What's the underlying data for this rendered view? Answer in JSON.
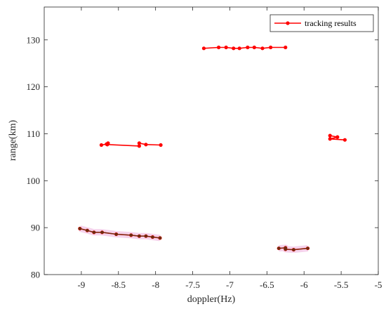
{
  "chart_data": {
    "type": "line",
    "xlabel": "doppler(Hz)",
    "ylabel": "range(km)",
    "xlim": [
      -9.5,
      -5
    ],
    "ylim": [
      80,
      137
    ],
    "xticks": [
      -9,
      -8.5,
      -8,
      -7.5,
      -7,
      -6.5,
      -6,
      -5.5,
      -5
    ],
    "xtick_labels": [
      "-9",
      "-8.5",
      "-8",
      "-7.5",
      "-7",
      "-6.5",
      "-6",
      "-5.5",
      "-5"
    ],
    "yticks": [
      80,
      90,
      100,
      110,
      120,
      130
    ],
    "ytick_labels": [
      "80",
      "90",
      "100",
      "110",
      "120",
      "130"
    ],
    "grid": false,
    "legend": {
      "position": "top-right",
      "entries": [
        "tracking results"
      ]
    },
    "colors": {
      "track": "#ff0000",
      "truth": "#6b2c10",
      "truth_band": "#f2c4e6"
    },
    "series": [
      {
        "name": "tracking results",
        "segments": [
          {
            "points": [
              [
                -7.35,
                128.2
              ],
              [
                -7.15,
                128.4
              ],
              [
                -7.05,
                128.4
              ],
              [
                -6.95,
                128.2
              ],
              [
                -6.87,
                128.2
              ],
              [
                -6.76,
                128.4
              ],
              [
                -6.67,
                128.4
              ],
              [
                -6.56,
                128.2
              ],
              [
                -6.45,
                128.4
              ],
              [
                -6.25,
                128.4
              ]
            ]
          },
          {
            "points": [
              [
                -8.73,
                107.6
              ],
              [
                -8.66,
                107.8
              ],
              [
                -8.64,
                108.0
              ],
              [
                -8.65,
                107.7
              ],
              [
                -8.22,
                107.4
              ],
              [
                -8.22,
                108.0
              ],
              [
                -8.13,
                107.7
              ],
              [
                -7.93,
                107.6
              ]
            ]
          },
          {
            "points": [
              [
                -5.65,
                109.6
              ],
              [
                -5.55,
                109.3
              ],
              [
                -5.65,
                108.9
              ],
              [
                -5.45,
                108.7
              ]
            ]
          },
          {
            "points": [
              [
                -9.02,
                89.8
              ],
              [
                -8.92,
                89.4
              ],
              [
                -8.83,
                89.0
              ],
              [
                -8.72,
                89.0
              ],
              [
                -8.53,
                88.6
              ],
              [
                -8.33,
                88.4
              ],
              [
                -8.22,
                88.2
              ],
              [
                -8.13,
                88.2
              ],
              [
                -8.04,
                88.0
              ],
              [
                -7.94,
                87.8
              ]
            ]
          },
          {
            "points": [
              [
                -6.34,
                85.6
              ],
              [
                -6.25,
                85.7
              ],
              [
                -6.25,
                85.4
              ],
              [
                -6.14,
                85.3
              ],
              [
                -5.95,
                85.6
              ]
            ]
          }
        ]
      },
      {
        "role": "underlay",
        "segments": [
          {
            "points": [
              [
                -9.02,
                89.8
              ],
              [
                -8.92,
                89.4
              ],
              [
                -8.83,
                89.0
              ],
              [
                -8.72,
                89.0
              ],
              [
                -8.53,
                88.6
              ],
              [
                -8.33,
                88.4
              ],
              [
                -8.22,
                88.2
              ],
              [
                -8.13,
                88.2
              ],
              [
                -8.04,
                88.0
              ],
              [
                -7.94,
                87.8
              ]
            ]
          },
          {
            "points": [
              [
                -6.34,
                85.6
              ],
              [
                -6.25,
                85.7
              ],
              [
                -6.25,
                85.4
              ],
              [
                -6.14,
                85.3
              ],
              [
                -5.95,
                85.6
              ]
            ]
          }
        ]
      }
    ]
  }
}
